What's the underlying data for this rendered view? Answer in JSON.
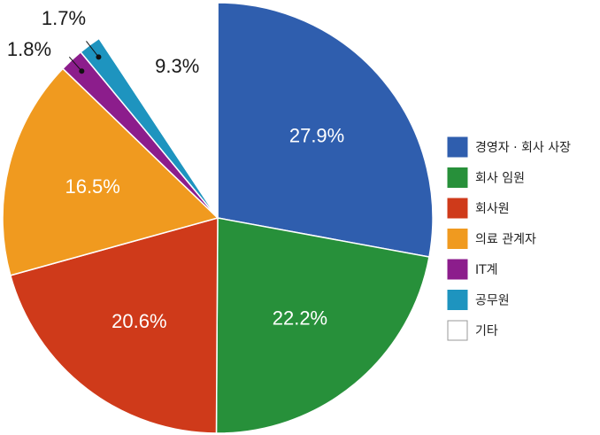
{
  "chart_data": {
    "type": "pie",
    "start_angle_deg": 0,
    "direction": "clockwise",
    "legend_position": "right",
    "slices": [
      {
        "label": "경영자 · 회사 사장",
        "value": 27.9,
        "value_label": "27.9%",
        "color": "#2f5eae",
        "label_placement": "inside"
      },
      {
        "label": "회사 임원",
        "value": 22.2,
        "value_label": "22.2%",
        "color": "#27903a",
        "label_placement": "inside"
      },
      {
        "label": "회사원",
        "value": 20.6,
        "value_label": "20.6%",
        "color": "#cf3a1a",
        "label_placement": "inside"
      },
      {
        "label": "의료 관계자",
        "value": 16.5,
        "value_label": "16.5%",
        "color": "#f09a1f",
        "label_placement": "inside"
      },
      {
        "label": "IT계",
        "value": 1.8,
        "value_label": "1.8%",
        "color": "#8c1d8c",
        "label_placement": "outside-leader"
      },
      {
        "label": "공무원",
        "value": 1.7,
        "value_label": "1.7%",
        "color": "#1e94bf",
        "label_placement": "outside-leader"
      },
      {
        "label": "기타",
        "value": 9.3,
        "value_label": "9.3%",
        "color": "#ffffff",
        "label_placement": "outside"
      }
    ]
  }
}
